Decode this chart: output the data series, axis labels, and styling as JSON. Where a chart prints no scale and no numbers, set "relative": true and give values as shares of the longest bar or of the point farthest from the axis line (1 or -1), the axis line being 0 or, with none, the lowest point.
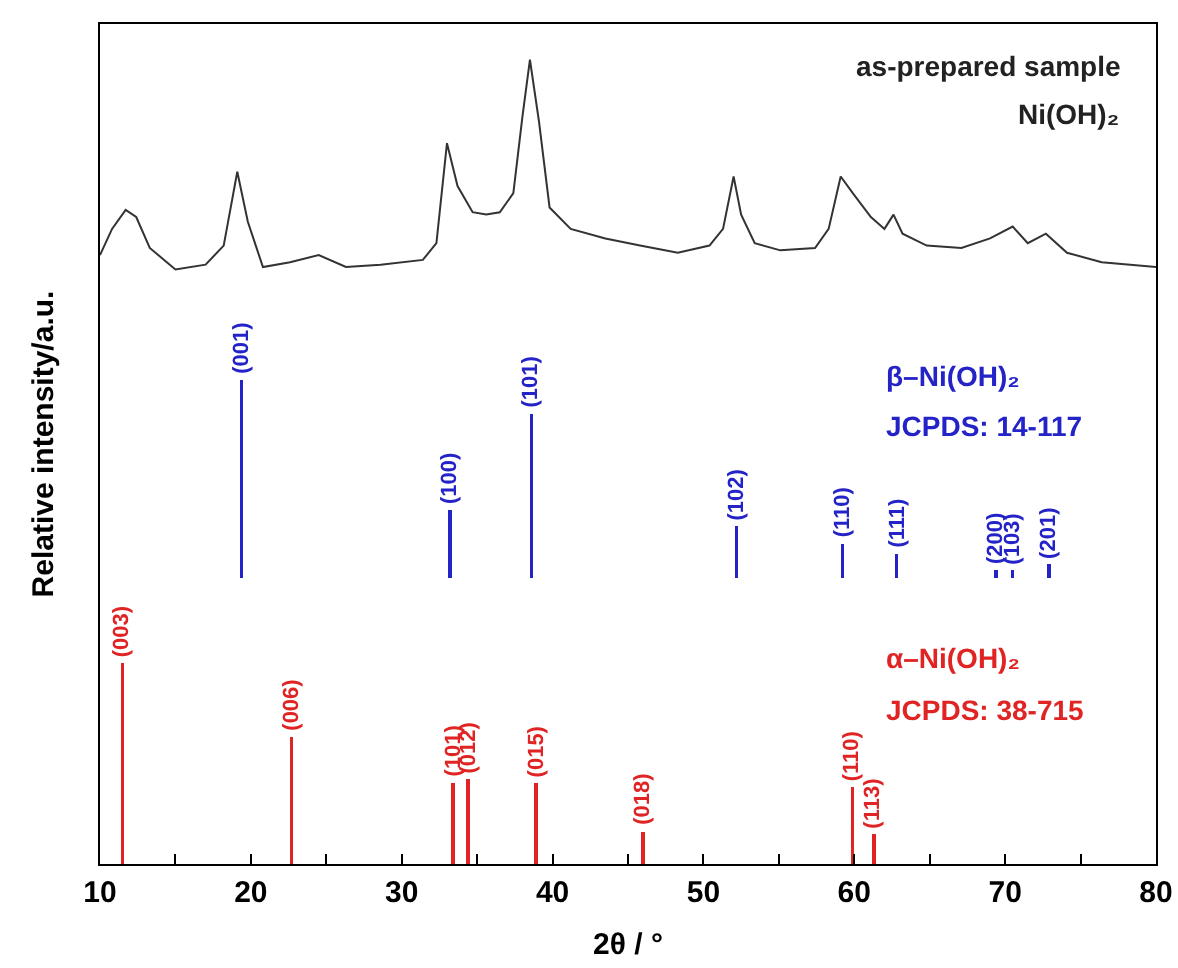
{
  "chart_data": [
    {
      "type": "line",
      "relative": true,
      "xlim": [
        10,
        80
      ],
      "tick_labels": false,
      "grid": false,
      "marker": "none",
      "line_style": "solid",
      "annotations": [
        "as-prepared sample",
        "Ni(OH)₂"
      ],
      "series": [
        {
          "color": "#333333",
          "x": [
            10.0,
            10.8,
            11.7,
            12.4,
            13.3,
            15.0,
            17.0,
            18.2,
            19.1,
            19.8,
            20.8,
            22.6,
            24.5,
            26.3,
            28.6,
            31.4,
            32.3,
            33.0,
            33.7,
            34.7,
            35.6,
            36.5,
            37.4,
            38.0,
            38.5,
            39.1,
            39.8,
            41.2,
            43.5,
            45.8,
            48.3,
            50.4,
            51.3,
            52.0,
            52.5,
            53.4,
            55.1,
            57.4,
            58.3,
            59.1,
            59.9,
            61.1,
            62.0,
            62.6,
            63.2,
            64.8,
            67.1,
            69.0,
            70.5,
            71.5,
            72.7,
            74.1,
            76.4,
            80.0
          ],
          "values": [
            0.18,
            0.29,
            0.37,
            0.34,
            0.21,
            0.12,
            0.14,
            0.22,
            0.53,
            0.32,
            0.13,
            0.15,
            0.18,
            0.13,
            0.14,
            0.16,
            0.23,
            0.65,
            0.47,
            0.36,
            0.35,
            0.36,
            0.44,
            0.76,
            1,
            0.74,
            0.38,
            0.29,
            0.25,
            0.22,
            0.19,
            0.22,
            0.29,
            0.51,
            0.35,
            0.23,
            0.2,
            0.21,
            0.29,
            0.51,
            0.44,
            0.34,
            0.29,
            0.35,
            0.27,
            0.22,
            0.21,
            0.25,
            0.3,
            0.23,
            0.27,
            0.19,
            0.15,
            0.13
          ]
        }
      ]
    },
    {
      "type": "bar",
      "relative": true,
      "xlim": [
        10,
        80
      ],
      "tick_labels": false,
      "grid": false,
      "ylabel": "Relative intensity/a.u.",
      "annotations": [
        "β–Ni(OH)₂",
        "JCPDS: 14-117",
        {
          "text": "(001)",
          "x": 19.4,
          "y": 1
        },
        {
          "text": "(100)",
          "x": 33.2,
          "y": 0.35
        },
        {
          "text": "(101)",
          "x": 38.6,
          "y": 0.83
        },
        {
          "text": "(102)",
          "x": 52.2,
          "y": 0.27
        },
        {
          "text": "(110)",
          "x": 59.2,
          "y": 0.18
        },
        {
          "text": "(111)",
          "x": 62.8,
          "y": 0.13
        },
        {
          "text": "(200)",
          "x": 69.4,
          "y": 0.05
        },
        {
          "text": "(103)",
          "x": 70.5,
          "y": 0.05
        },
        {
          "text": "(201)",
          "x": 72.9,
          "y": 0.08
        }
      ],
      "series": [
        {
          "color": "#2323c8",
          "x": [
            19.4,
            33.2,
            38.6,
            52.2,
            59.2,
            62.8,
            69.4,
            70.5,
            72.9
          ],
          "values": [
            1,
            0.35,
            0.83,
            0.27,
            0.18,
            0.13,
            0.05,
            0.05,
            0.08
          ]
        }
      ]
    },
    {
      "type": "bar",
      "relative": true,
      "xlim": [
        10,
        80
      ],
      "grid": false,
      "xlabel": "2θ / °",
      "xticks": [
        10,
        {
          "value": 15,
          "label": null
        },
        20,
        {
          "value": 25,
          "label": null
        },
        30,
        {
          "value": 35,
          "label": null
        },
        40,
        {
          "value": 45,
          "label": null
        },
        50,
        {
          "value": 55,
          "label": null
        },
        60,
        {
          "value": 65,
          "label": null
        },
        70,
        {
          "value": 75,
          "label": null
        },
        80
      ],
      "annotations": [
        "α–Ni(OH)₂",
        "JCPDS: 38-715",
        {
          "text": "(003)",
          "x": 11.5,
          "y": 1
        },
        {
          "text": "(006)",
          "x": 22.7,
          "y": 0.63
        },
        {
          "text": "(101)",
          "x": 33.4,
          "y": 0.4
        },
        {
          "text": "(012)",
          "x": 34.4,
          "y": 0.42
        },
        {
          "text": "(015)",
          "x": 38.9,
          "y": 0.4
        },
        {
          "text": "(018)",
          "x": 46.0,
          "y": 0.16
        },
        {
          "text": "(110)",
          "x": 59.9,
          "y": 0.38
        },
        {
          "text": "(113)",
          "x": 61.3,
          "y": 0.15
        }
      ],
      "series": [
        {
          "color": "#e02424",
          "x": [
            11.5,
            22.7,
            33.4,
            34.4,
            38.9,
            46.0,
            59.9,
            61.3
          ],
          "values": [
            1,
            0.63,
            0.4,
            0.42,
            0.4,
            0.16,
            0.38,
            0.15
          ]
        }
      ]
    }
  ]
}
